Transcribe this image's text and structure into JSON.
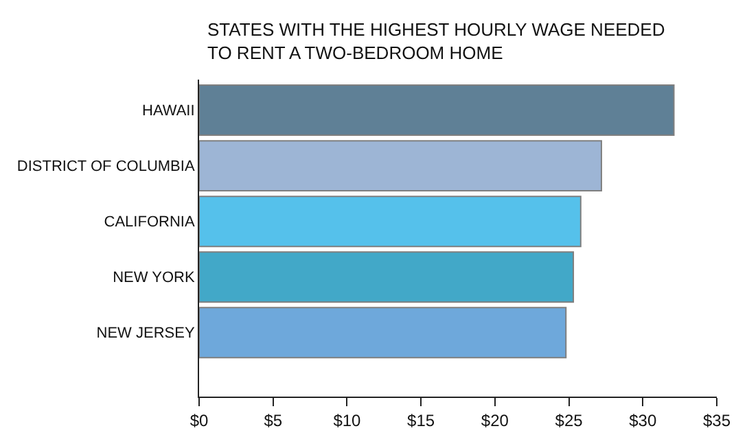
{
  "chart_data": {
    "type": "bar",
    "orientation": "horizontal",
    "title": "STATES WITH THE HIGHEST HOURLY WAGE NEEDED\nTO RENT A TWO-BEDROOM HOME",
    "categories": [
      "HAWAII",
      "DISTRICT OF COLUMBIA",
      "CALIFORNIA",
      "NEW YORK",
      "NEW JERSEY"
    ],
    "values": [
      32.1,
      27.2,
      25.8,
      25.3,
      24.8
    ],
    "colors": [
      "#5f8096",
      "#9db5d5",
      "#55c1eb",
      "#42a8c8",
      "#6ea8db"
    ],
    "xlim": [
      0,
      35
    ],
    "xticks": [
      {
        "value": 0,
        "label": "$0"
      },
      {
        "value": 5,
        "label": "$5"
      },
      {
        "value": 10,
        "label": "$10"
      },
      {
        "value": 15,
        "label": "$15"
      },
      {
        "value": 20,
        "label": "$20"
      },
      {
        "value": 25,
        "label": "$25"
      },
      {
        "value": 30,
        "label": "$30"
      },
      {
        "value": 35,
        "label": "$35"
      }
    ]
  }
}
